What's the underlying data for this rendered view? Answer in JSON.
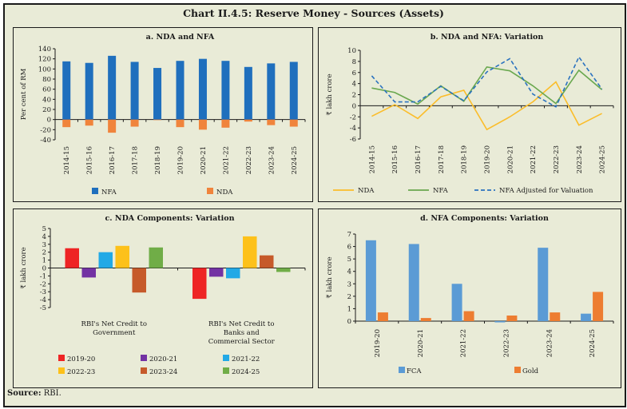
{
  "title": "Chart II.4.5: Reserve Money - Sources (Assets)",
  "source_label": "Source:",
  "source_value": "RBI.",
  "chart_data": [
    {
      "id": "a",
      "type": "bar",
      "title": "a. NDA and NFA",
      "ylabel": "Per cent of RM",
      "xlabel": "",
      "ylim": [
        -40,
        140
      ],
      "yticks": [
        140,
        120,
        100,
        80,
        60,
        40,
        20,
        0,
        -20,
        -40
      ],
      "categories": [
        "2014-15",
        "2015-16",
        "2016-17",
        "2017-18",
        "2018-19",
        "2019-20",
        "2020-21",
        "2021-22",
        "2022-23",
        "2023-24",
        "2024-25"
      ],
      "series": [
        {
          "name": "NFA",
          "color": "#1f6fbd",
          "values": [
            115,
            112,
            126,
            114,
            102,
            116,
            120,
            116,
            104,
            111,
            114
          ]
        },
        {
          "name": "NDA",
          "color": "#f0843c",
          "values": [
            -15,
            -12,
            -26,
            -14,
            -1,
            -15,
            -20,
            -16,
            -4,
            -11,
            -14
          ]
        }
      ],
      "stacked": true,
      "legend_position": "bottom"
    },
    {
      "id": "b",
      "type": "line",
      "title": "b. NDA and NFA: Variation",
      "ylabel": "₹ lakh crore",
      "xlabel": "",
      "ylim": [
        -6,
        10
      ],
      "yticks": [
        10,
        8,
        6,
        4,
        2,
        0,
        -2,
        -4,
        -6
      ],
      "categories": [
        "2014-15",
        "2015-16",
        "2016-17",
        "2017-18",
        "2018-19",
        "2019-20",
        "2020-21",
        "2021-22",
        "2022-23",
        "2023-24",
        "2024-25"
      ],
      "series": [
        {
          "name": "NDA",
          "color": "#fbbd2a",
          "dashed": false,
          "values": [
            -1.9,
            0.2,
            -2.3,
            1.6,
            2.8,
            -4.3,
            -2.0,
            0.7,
            4.3,
            -3.5,
            -1.4
          ]
        },
        {
          "name": "NFA",
          "color": "#6aa84f",
          "dashed": false,
          "values": [
            3.2,
            2.4,
            0.3,
            3.6,
            0.8,
            7.0,
            6.3,
            3.6,
            0.4,
            6.4,
            2.9
          ]
        },
        {
          "name": "NFA Adjusted for Valuation",
          "color": "#2a72bf",
          "dashed": true,
          "values": [
            5.4,
            0.7,
            0.7,
            3.5,
            0.9,
            6.1,
            8.5,
            2.1,
            -0.2,
            8.8,
            3.0
          ]
        }
      ],
      "legend_position": "bottom"
    },
    {
      "id": "c",
      "type": "bar",
      "title": "c. NDA Components: Variation",
      "ylabel": "₹ lakh crore",
      "xlabel": "",
      "ylim": [
        -5,
        5
      ],
      "yticks": [
        5,
        4,
        3,
        2,
        1,
        0,
        -1,
        -2,
        -3,
        -4,
        -5
      ],
      "categories": [
        [
          "RBI's Net Credit to",
          "Government"
        ],
        [
          "RBI's Net Credit to",
          "Banks and",
          "Commercial Sector"
        ]
      ],
      "series": [
        {
          "name": "2019-20",
          "color": "#ee2424",
          "values": [
            2.5,
            -3.9
          ]
        },
        {
          "name": "2020-21",
          "color": "#7332a3",
          "values": [
            -1.2,
            -1.1
          ]
        },
        {
          "name": "2021-22",
          "color": "#22a9e6",
          "values": [
            2.0,
            -1.3
          ]
        },
        {
          "name": "2022-23",
          "color": "#fdc11a",
          "values": [
            2.8,
            4.0
          ]
        },
        {
          "name": "2023-24",
          "color": "#c65a2a",
          "values": [
            -3.1,
            1.6
          ]
        },
        {
          "name": "2024-25",
          "color": "#70ad47",
          "values": [
            2.6,
            -0.5
          ]
        }
      ],
      "legend_position": "bottom"
    },
    {
      "id": "d",
      "type": "bar",
      "title": "d. NFA Components: Variation",
      "ylabel": "₹ lakh crore",
      "xlabel": "",
      "ylim": [
        0,
        7
      ],
      "yticks": [
        7,
        6,
        5,
        4,
        3,
        2,
        1,
        0
      ],
      "categories": [
        "2019-20",
        "2020-21",
        "2021-22",
        "2022-23",
        "2023-24",
        "2024-25"
      ],
      "series": [
        {
          "name": "FCA",
          "color": "#5b9bd5",
          "values": [
            6.5,
            6.2,
            3.0,
            -0.1,
            5.9,
            0.6
          ]
        },
        {
          "name": "Gold",
          "color": "#ed7d31",
          "values": [
            0.7,
            0.25,
            0.8,
            0.45,
            0.7,
            2.35
          ]
        }
      ],
      "legend_position": "bottom"
    }
  ]
}
